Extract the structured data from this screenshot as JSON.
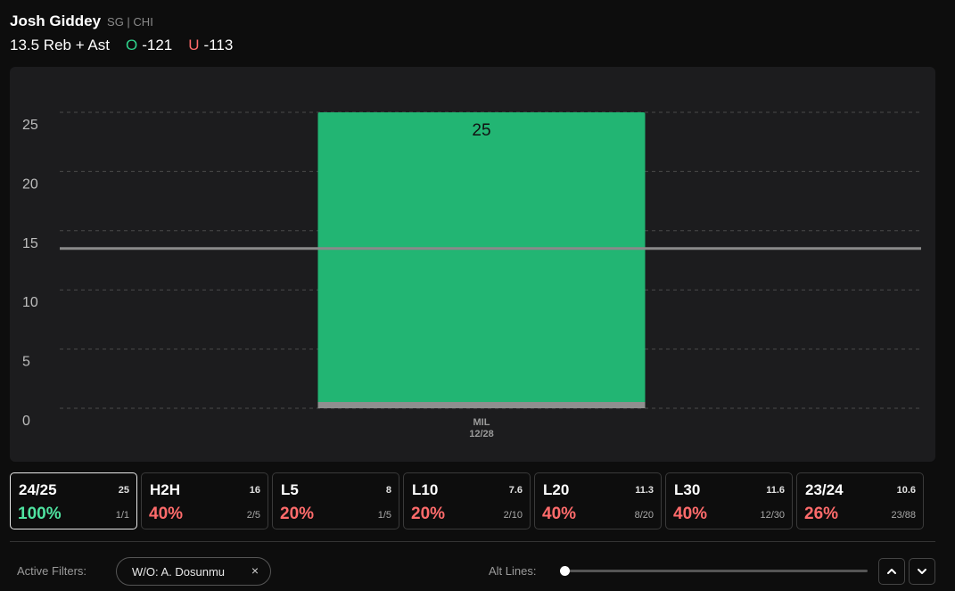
{
  "player": {
    "name": "Josh Giddey",
    "meta": "SG | CHI",
    "line": "13.5 Reb + Ast",
    "over_label": "O",
    "over_odds": "-121",
    "under_label": "U",
    "under_odds": "-113"
  },
  "chart_data": {
    "type": "bar",
    "categories": [
      "MIL 12/28"
    ],
    "tick_top": [
      "MIL"
    ],
    "tick_bottom": [
      "12/28"
    ],
    "values": [
      25
    ],
    "value_labels": [
      "25"
    ],
    "y_ticks": [
      "0",
      "5",
      "10",
      "15",
      "20",
      "25"
    ],
    "ylim": [
      0,
      25
    ],
    "line_value": 13.5,
    "grid": true,
    "colors": {
      "bar": "#22b573",
      "line": "#8a8a8a",
      "base": "#8f8f8f"
    }
  },
  "stats": [
    {
      "label": "24/25",
      "avg": "25",
      "pct": "100%",
      "frac": "1/1",
      "status": "good",
      "active": true
    },
    {
      "label": "H2H",
      "avg": "16",
      "pct": "40%",
      "frac": "2/5",
      "status": "bad",
      "active": false
    },
    {
      "label": "L5",
      "avg": "8",
      "pct": "20%",
      "frac": "1/5",
      "status": "bad",
      "active": false
    },
    {
      "label": "L10",
      "avg": "7.6",
      "pct": "20%",
      "frac": "2/10",
      "status": "bad",
      "active": false
    },
    {
      "label": "L20",
      "avg": "11.3",
      "pct": "40%",
      "frac": "8/20",
      "status": "bad",
      "active": false
    },
    {
      "label": "L30",
      "avg": "11.6",
      "pct": "40%",
      "frac": "12/30",
      "status": "bad",
      "active": false
    },
    {
      "label": "23/24",
      "avg": "10.6",
      "pct": "26%",
      "frac": "23/88",
      "status": "bad",
      "active": false
    }
  ],
  "filters": {
    "label": "Active Filters:",
    "chip": "W/O: A. Dosunmu",
    "chip_close": "×"
  },
  "alt_lines": {
    "label": "Alt Lines:",
    "level": 0
  },
  "icons": {
    "close": "close-icon",
    "up": "chevron-up-icon",
    "down": "chevron-down-icon"
  }
}
